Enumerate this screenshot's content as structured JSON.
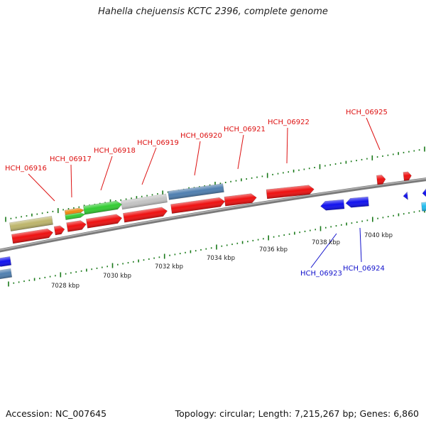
{
  "title": "Hahella chejuensis KCTC 2396, complete genome",
  "footer": {
    "accession": "Accession: NC_007645",
    "summary": "Topology: circular; Length: 7,215,267 bp; Genes: 6,860"
  },
  "axis_labels": [
    "7028 kbp",
    "7030 kbp",
    "7032 kbp",
    "7034 kbp",
    "7036 kbp",
    "7038 kbp",
    "7040 kbp"
  ],
  "gene_labels_forward": [
    "HCH_06916",
    "HCH_06917",
    "HCH_06918",
    "HCH_06919",
    "HCH_06920",
    "HCH_06921",
    "HCH_06922",
    "HCH_06925"
  ],
  "gene_labels_reverse": [
    "HCH_06923",
    "HCH_06924"
  ],
  "colors": {
    "forward": "#ee1111",
    "reverse": "#1111ee",
    "steelblue": "#4f7fb0",
    "green": "#33cc33",
    "grey": "#c4c4c4",
    "olive": "#bdb56b",
    "orange": "#ee8811",
    "cyan": "#22bbee",
    "backbone": "#888888",
    "tick": "#1a7a1a"
  }
}
